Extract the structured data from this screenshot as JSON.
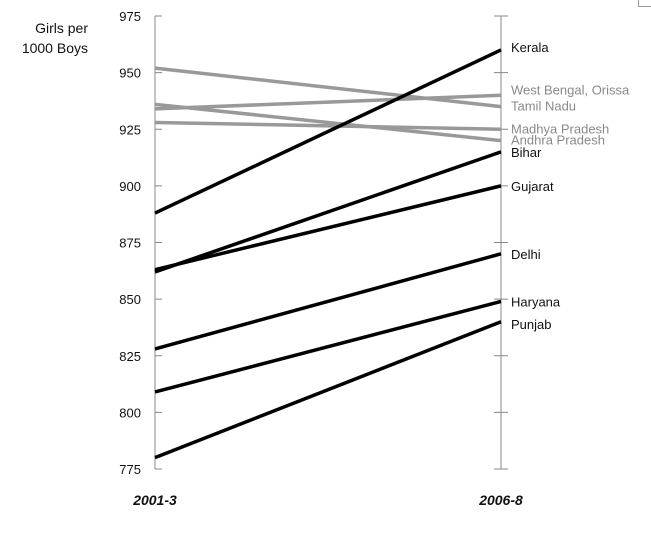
{
  "chart_data": {
    "type": "line",
    "title": "",
    "ylabel_line1": "Girls per",
    "ylabel_line2": "1000 Boys",
    "xlabel": "",
    "x": [
      "2001-3",
      "2006-8"
    ],
    "ylim": [
      775,
      975
    ],
    "yticks": [
      775,
      800,
      825,
      850,
      875,
      900,
      925,
      950,
      975
    ],
    "grid": false,
    "colors": {
      "black": "#000000",
      "gray": "#999999"
    },
    "series": [
      {
        "name": "Kerala",
        "values": [
          888,
          960
        ],
        "color": "black"
      },
      {
        "name": "West Bengal, Orissa",
        "values": [
          934,
          940
        ],
        "color": "gray"
      },
      {
        "name": "Tamil Nadu",
        "values": [
          952,
          935
        ],
        "color": "gray"
      },
      {
        "name": "Madhya Pradesh",
        "values": [
          928,
          925
        ],
        "color": "gray"
      },
      {
        "name": "Andhra Pradesh",
        "values": [
          936,
          920
        ],
        "color": "gray"
      },
      {
        "name": "Bihar",
        "values": [
          862,
          915
        ],
        "color": "black"
      },
      {
        "name": "Gujarat",
        "values": [
          863,
          900
        ],
        "color": "black"
      },
      {
        "name": "Delhi",
        "values": [
          828,
          870
        ],
        "color": "black"
      },
      {
        "name": "Haryana",
        "values": [
          809,
          849
        ],
        "color": "black"
      },
      {
        "name": "Punjab",
        "values": [
          780,
          840
        ],
        "color": "black"
      }
    ]
  }
}
